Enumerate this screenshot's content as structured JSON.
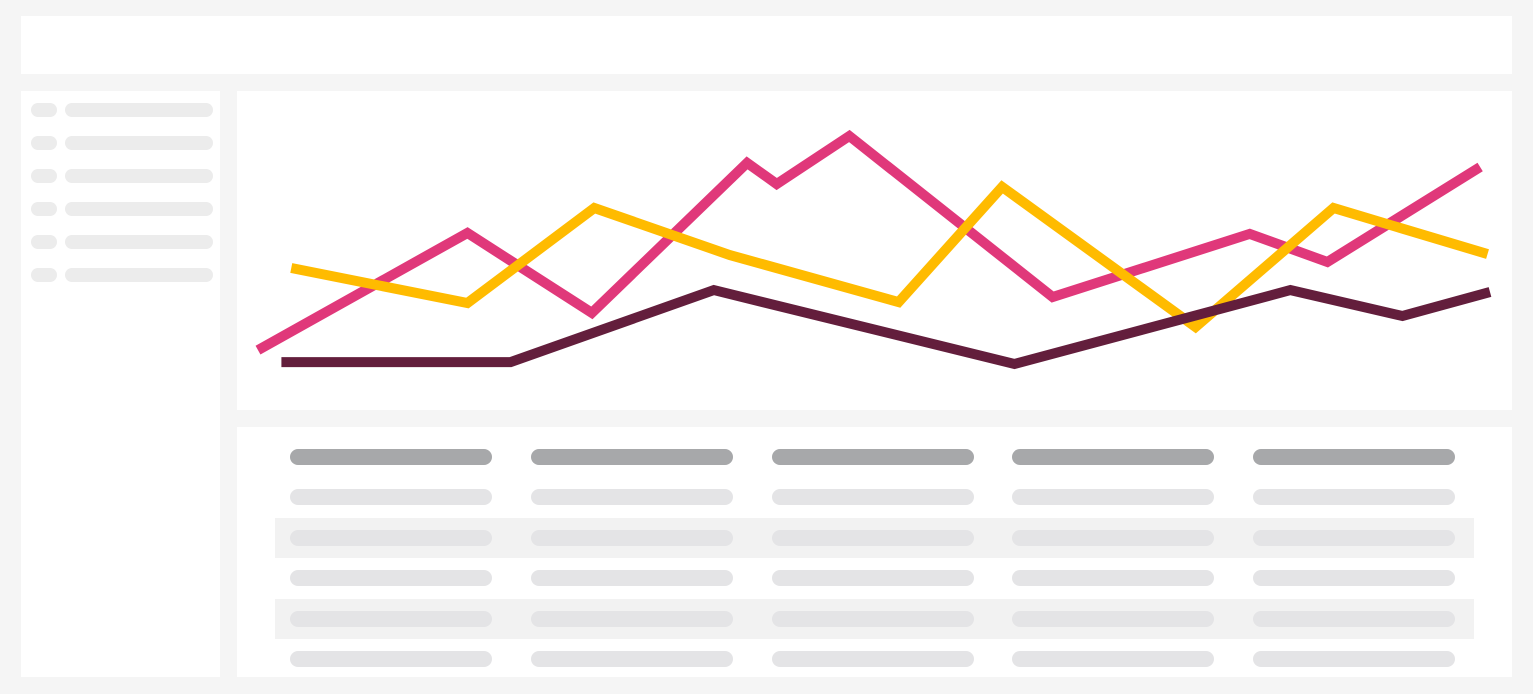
{
  "chart_data": {
    "type": "line",
    "xlim": [
      0,
      100
    ],
    "ylim": [
      0,
      100
    ],
    "series": [
      {
        "color": "#e0387a",
        "x": [
          0,
          17.0,
          27.1,
          39.7,
          42.1,
          48.0,
          64.5,
          80.5,
          86.8,
          99.2
        ],
        "values": [
          8.3,
          57.1,
          23.8,
          86.3,
          77.5,
          97.5,
          30.4,
          56.7,
          45.0,
          84.6
        ]
      },
      {
        "color": "#ffbb00",
        "x": [
          2.7,
          17.0,
          27.3,
          38.3,
          52.0,
          60.4,
          76.1,
          87.3,
          99.8
        ],
        "values": [
          42.5,
          27.9,
          67.5,
          47.9,
          28.3,
          76.3,
          17.9,
          67.5,
          48.3
        ]
      },
      {
        "color": "#631e3c",
        "x": [
          1.9,
          20.5,
          37.0,
          61.4,
          83.8,
          92.9,
          100
        ],
        "values": [
          3.3,
          3.3,
          33.3,
          2.5,
          33.3,
          22.5,
          32.5
        ]
      }
    ]
  }
}
